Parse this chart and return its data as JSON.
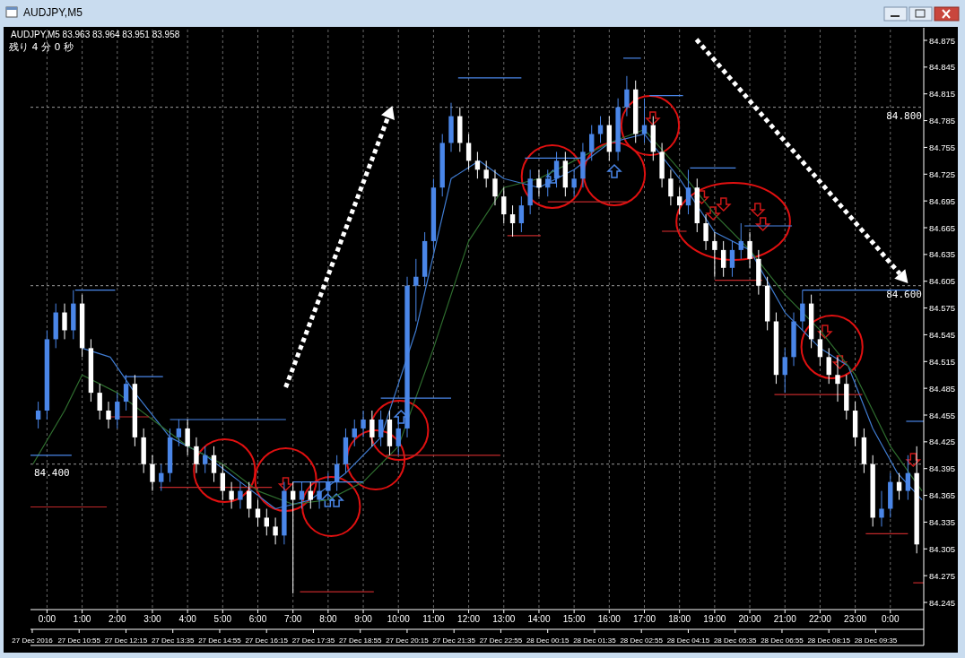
{
  "chart_data": {
    "type": "candlestick",
    "title": "AUDJPY,M5",
    "subtitle": "AUDJPY,M5  83.963 83.964 83.951 83.958",
    "annotations": [
      "残り 4 分 0 秒"
    ],
    "x": [
      -0.25,
      0,
      0.25,
      0.5,
      0.75,
      1,
      1.25,
      1.5,
      1.75,
      2,
      2.25,
      2.5,
      2.75,
      3,
      3.25,
      3.5,
      3.75,
      4,
      4.25,
      4.5,
      4.75,
      5,
      5.25,
      5.5,
      5.75,
      6,
      6.25,
      6.5,
      6.75,
      7,
      7.25,
      7.5,
      7.75,
      8,
      8.25,
      8.5,
      8.75,
      9,
      9.25,
      9.5,
      9.75,
      10,
      10.25,
      10.5,
      10.75,
      11,
      11.25,
      11.5,
      11.75,
      12,
      12.25,
      12.5,
      12.75,
      13,
      13.25,
      13.5,
      13.75,
      14,
      14.25,
      14.5,
      14.75,
      15,
      15.25,
      15.5,
      15.75,
      16,
      16.25,
      16.5,
      16.75,
      17,
      17.25,
      17.5,
      17.75,
      18,
      18.25,
      18.5,
      18.75,
      19,
      19.25,
      19.5,
      19.75,
      20,
      20.25,
      20.5,
      20.75,
      21,
      21.25,
      21.5,
      21.75,
      22,
      22.25,
      22.5,
      22.75,
      23,
      23.25,
      23.5,
      23.75,
      24,
      24.25,
      24.5,
      24.75
    ],
    "ohlc": [
      [
        84.45,
        84.47,
        84.44,
        84.46
      ],
      [
        84.46,
        84.55,
        84.45,
        84.54
      ],
      [
        84.54,
        84.58,
        84.53,
        84.57
      ],
      [
        84.57,
        84.58,
        84.54,
        84.55
      ],
      [
        84.55,
        84.595,
        84.54,
        84.58
      ],
      [
        84.58,
        84.59,
        84.52,
        84.53
      ],
      [
        84.53,
        84.54,
        84.47,
        84.48
      ],
      [
        84.48,
        84.49,
        84.45,
        84.46
      ],
      [
        84.46,
        84.47,
        84.44,
        84.45
      ],
      [
        84.45,
        84.48,
        84.44,
        84.47
      ],
      [
        84.47,
        84.5,
        84.46,
        84.49
      ],
      [
        84.49,
        84.5,
        84.42,
        84.43
      ],
      [
        84.43,
        84.44,
        84.39,
        84.4
      ],
      [
        84.4,
        84.41,
        84.37,
        84.38
      ],
      [
        84.38,
        84.4,
        84.37,
        84.39
      ],
      [
        84.39,
        84.44,
        84.38,
        84.43
      ],
      [
        84.43,
        84.45,
        84.42,
        84.44
      ],
      [
        84.44,
        84.45,
        84.41,
        84.42
      ],
      [
        84.42,
        84.43,
        84.39,
        84.4
      ],
      [
        84.4,
        84.42,
        84.39,
        84.41
      ],
      [
        84.41,
        84.42,
        84.38,
        84.39
      ],
      [
        84.39,
        84.4,
        84.36,
        84.37
      ],
      [
        84.37,
        84.38,
        84.35,
        84.36
      ],
      [
        84.36,
        84.38,
        84.35,
        84.37
      ],
      [
        84.37,
        84.38,
        84.34,
        84.35
      ],
      [
        84.35,
        84.36,
        84.33,
        84.34
      ],
      [
        84.34,
        84.35,
        84.32,
        84.33
      ],
      [
        84.33,
        84.34,
        84.31,
        84.32
      ],
      [
        84.32,
        84.38,
        84.31,
        84.37
      ],
      [
        84.37,
        84.38,
        84.255,
        84.36
      ],
      [
        84.36,
        84.38,
        84.35,
        84.37
      ],
      [
        84.37,
        84.38,
        84.35,
        84.36
      ],
      [
        84.36,
        84.38,
        84.35,
        84.37
      ],
      [
        84.37,
        84.39,
        84.36,
        84.38
      ],
      [
        84.38,
        84.41,
        84.37,
        84.4
      ],
      [
        84.4,
        84.44,
        84.39,
        84.43
      ],
      [
        84.43,
        84.45,
        84.42,
        84.44
      ],
      [
        84.44,
        84.46,
        84.43,
        84.45
      ],
      [
        84.45,
        84.46,
        84.42,
        84.43
      ],
      [
        84.43,
        84.46,
        84.42,
        84.45
      ],
      [
        84.45,
        84.46,
        84.41,
        84.42
      ],
      [
        84.42,
        84.45,
        84.41,
        84.44
      ],
      [
        84.44,
        84.61,
        84.43,
        84.6
      ],
      [
        84.6,
        84.63,
        84.56,
        84.61
      ],
      [
        84.61,
        84.66,
        84.6,
        84.65
      ],
      [
        84.65,
        84.72,
        84.64,
        84.71
      ],
      [
        84.71,
        84.77,
        84.7,
        84.76
      ],
      [
        84.76,
        84.805,
        84.75,
        84.79
      ],
      [
        84.79,
        84.8,
        84.75,
        84.76
      ],
      [
        84.76,
        84.77,
        84.73,
        84.74
      ],
      [
        84.74,
        84.75,
        84.72,
        84.73
      ],
      [
        84.73,
        84.74,
        84.71,
        84.72
      ],
      [
        84.72,
        84.73,
        84.69,
        84.7
      ],
      [
        84.7,
        84.71,
        84.67,
        84.68
      ],
      [
        84.68,
        84.69,
        84.655,
        84.67
      ],
      [
        84.67,
        84.7,
        84.66,
        84.69
      ],
      [
        84.69,
        84.73,
        84.68,
        84.72
      ],
      [
        84.72,
        84.73,
        84.7,
        84.71
      ],
      [
        84.71,
        84.73,
        84.7,
        84.72
      ],
      [
        84.72,
        84.75,
        84.71,
        84.74
      ],
      [
        84.74,
        84.75,
        84.7,
        84.71
      ],
      [
        84.71,
        84.73,
        84.7,
        84.72
      ],
      [
        84.72,
        84.76,
        84.71,
        84.75
      ],
      [
        84.75,
        84.78,
        84.74,
        84.77
      ],
      [
        84.77,
        84.79,
        84.76,
        84.78
      ],
      [
        84.78,
        84.79,
        84.74,
        84.75
      ],
      [
        84.75,
        84.81,
        84.74,
        84.8
      ],
      [
        84.8,
        84.835,
        84.79,
        84.82
      ],
      [
        84.82,
        84.83,
        84.76,
        84.77
      ],
      [
        84.77,
        84.81,
        84.76,
        84.78
      ],
      [
        84.78,
        84.79,
        84.74,
        84.75
      ],
      [
        84.75,
        84.76,
        84.71,
        84.72
      ],
      [
        84.72,
        84.73,
        84.69,
        84.7
      ],
      [
        84.7,
        84.71,
        84.68,
        84.69
      ],
      [
        84.69,
        84.73,
        84.68,
        84.71
      ],
      [
        84.71,
        84.72,
        84.66,
        84.67
      ],
      [
        84.67,
        84.68,
        84.64,
        84.65
      ],
      [
        84.65,
        84.66,
        84.61,
        84.64
      ],
      [
        84.64,
        84.65,
        84.61,
        84.62
      ],
      [
        84.62,
        84.65,
        84.61,
        84.64
      ],
      [
        84.64,
        84.67,
        84.63,
        84.65
      ],
      [
        84.65,
        84.66,
        84.62,
        84.63
      ],
      [
        84.63,
        84.64,
        84.59,
        84.6
      ],
      [
        84.6,
        84.61,
        84.55,
        84.56
      ],
      [
        84.56,
        84.57,
        84.49,
        84.5
      ],
      [
        84.5,
        84.53,
        84.48,
        84.52
      ],
      [
        84.52,
        84.57,
        84.51,
        84.56
      ],
      [
        84.56,
        84.595,
        84.55,
        84.58
      ],
      [
        84.58,
        84.59,
        84.53,
        84.54
      ],
      [
        84.54,
        84.55,
        84.51,
        84.52
      ],
      [
        84.52,
        84.53,
        84.49,
        84.5
      ],
      [
        84.5,
        84.52,
        84.47,
        84.49
      ],
      [
        84.49,
        84.5,
        84.45,
        84.46
      ],
      [
        84.46,
        84.47,
        84.42,
        84.43
      ],
      [
        84.43,
        84.44,
        84.39,
        84.4
      ],
      [
        84.4,
        84.41,
        84.33,
        84.34
      ],
      [
        84.34,
        84.37,
        84.33,
        84.35
      ],
      [
        84.35,
        84.39,
        84.34,
        84.38
      ],
      [
        84.38,
        84.39,
        84.36,
        84.37
      ],
      [
        84.37,
        84.41,
        84.36,
        84.39
      ],
      [
        84.39,
        84.42,
        84.3,
        84.31
      ]
    ],
    "colors": [
      "#4a86e8",
      "#4a86e8",
      "#4a86e8",
      "#ffffff",
      "#4a86e8",
      "#ffffff",
      "#ffffff",
      "#ffffff",
      "#ffffff",
      "#4a86e8",
      "#4a86e8",
      "#ffffff",
      "#ffffff",
      "#ffffff",
      "#4a86e8",
      "#4a86e8",
      "#4a86e8",
      "#ffffff",
      "#ffffff",
      "#4a86e8",
      "#ffffff",
      "#ffffff",
      "#ffffff",
      "#4a86e8",
      "#ffffff",
      "#ffffff",
      "#ffffff",
      "#ffffff",
      "#4a86e8",
      "#ffffff",
      "#4a86e8",
      "#ffffff",
      "#4a86e8",
      "#4a86e8",
      "#4a86e8",
      "#4a86e8",
      "#4a86e8",
      "#4a86e8",
      "#ffffff",
      "#4a86e8",
      "#ffffff",
      "#4a86e8",
      "#4a86e8",
      "#4a86e8",
      "#4a86e8",
      "#4a86e8",
      "#4a86e8",
      "#4a86e8",
      "#ffffff",
      "#ffffff",
      "#ffffff",
      "#ffffff",
      "#ffffff",
      "#ffffff",
      "#ffffff",
      "#4a86e8",
      "#4a86e8",
      "#ffffff",
      "#4a86e8",
      "#4a86e8",
      "#ffffff",
      "#4a86e8",
      "#4a86e8",
      "#4a86e8",
      "#4a86e8",
      "#ffffff",
      "#4a86e8",
      "#4a86e8",
      "#ffffff",
      "#4a86e8",
      "#ffffff",
      "#ffffff",
      "#ffffff",
      "#ffffff",
      "#4a86e8",
      "#ffffff",
      "#ffffff",
      "#ffffff",
      "#ffffff",
      "#4a86e8",
      "#4a86e8",
      "#ffffff",
      "#ffffff",
      "#ffffff",
      "#ffffff",
      "#4a86e8",
      "#4a86e8",
      "#4a86e8",
      "#ffffff",
      "#ffffff",
      "#ffffff",
      "#ffffff",
      "#ffffff",
      "#ffffff",
      "#ffffff",
      "#ffffff",
      "#4a86e8",
      "#4a86e8",
      "#ffffff",
      "#4a86e8",
      "#ffffff"
    ],
    "series": [
      {
        "type": "line",
        "color": "#3f7bd0",
        "x": [
          1,
          1.8,
          2.5,
          3.5,
          4.5,
          5.5,
          6.5,
          7.5,
          8.5,
          9.5,
          10.5,
          11.5,
          12.3,
          13,
          14,
          15,
          16,
          17,
          18,
          19,
          20,
          21,
          22,
          22.8,
          23.5,
          24.2,
          24.9
        ],
        "values": [
          84.53,
          84.52,
          84.48,
          84.43,
          84.41,
          84.38,
          84.35,
          84.36,
          84.39,
          84.43,
          84.55,
          84.72,
          84.74,
          84.72,
          84.71,
          84.73,
          84.76,
          84.77,
          84.72,
          84.66,
          84.64,
          84.57,
          84.53,
          84.51,
          84.44,
          84.39,
          84.36
        ]
      },
      {
        "type": "line",
        "color": "#2f6e2f",
        "x": [
          -0.4,
          0.5,
          1,
          2,
          3,
          4,
          5,
          6,
          7,
          8,
          9,
          10,
          11,
          12,
          13,
          14,
          15,
          16,
          17,
          18,
          19,
          20,
          21,
          22,
          23,
          24,
          24.9
        ],
        "values": [
          84.4,
          84.46,
          84.5,
          84.48,
          84.45,
          84.42,
          84.4,
          84.37,
          84.355,
          84.36,
          84.38,
          84.42,
          84.53,
          84.65,
          84.71,
          84.72,
          84.74,
          84.76,
          84.775,
          84.73,
          84.68,
          84.64,
          84.59,
          84.55,
          84.5,
          84.42,
          84.37
        ]
      },
      {
        "type": "line",
        "color": "#4a86e8",
        "x": [
          0.8,
          1.94
        ],
        "values": [
          84.595,
          84.595
        ]
      },
      {
        "type": "line",
        "color": "#4a86e8",
        "x": [
          -0.47,
          0.7
        ],
        "values": [
          84.41,
          84.41
        ]
      },
      {
        "type": "line",
        "color": "#c0282a",
        "x": [
          -0.47,
          1.7
        ],
        "values": [
          84.352,
          84.352
        ]
      },
      {
        "type": "line",
        "color": "#4a86e8",
        "x": [
          2.2,
          3.3
        ],
        "values": [
          84.498,
          84.498
        ]
      },
      {
        "type": "line",
        "color": "#c0282a",
        "x": [
          1.8,
          2.9
        ],
        "values": [
          84.453,
          84.453
        ]
      },
      {
        "type": "line",
        "color": "#4a86e8",
        "x": [
          3.5,
          6.8
        ],
        "values": [
          84.45,
          84.45
        ]
      },
      {
        "type": "line",
        "color": "#c0282a",
        "x": [
          3.2,
          6.4
        ],
        "values": [
          84.374,
          84.374
        ]
      },
      {
        "type": "line",
        "color": "#4a86e8",
        "x": [
          7,
          9
        ],
        "values": [
          84.38,
          84.38
        ]
      },
      {
        "type": "line",
        "color": "#c0282a",
        "x": [
          7.2,
          9.3
        ],
        "values": [
          84.257,
          84.257
        ]
      },
      {
        "type": "line",
        "color": "#4a86e8",
        "x": [
          9.5,
          11.5
        ],
        "values": [
          84.474,
          84.474
        ]
      },
      {
        "type": "line",
        "color": "#c0282a",
        "x": [
          9.65,
          12.9
        ],
        "values": [
          84.41,
          84.41
        ]
      },
      {
        "type": "line",
        "color": "#4a86e8",
        "x": [
          11.7,
          13.5
        ],
        "values": [
          84.833,
          84.833
        ]
      },
      {
        "type": "line",
        "color": "#c0282a",
        "x": [
          13.1,
          14.05
        ],
        "values": [
          84.656,
          84.656
        ]
      },
      {
        "type": "line",
        "color": "#4a86e8",
        "x": [
          13.6,
          15.25
        ],
        "values": [
          84.743,
          84.743
        ]
      },
      {
        "type": "line",
        "color": "#c0282a",
        "x": [
          14.25,
          16.5
        ],
        "values": [
          84.694,
          84.694
        ]
      },
      {
        "type": "line",
        "color": "#4a86e8",
        "x": [
          16.4,
          16.9
        ],
        "values": [
          84.855,
          84.855
        ]
      },
      {
        "type": "line",
        "color": "#4a86e8",
        "x": [
          17.15,
          18.1
        ],
        "values": [
          84.813,
          84.813
        ]
      },
      {
        "type": "line",
        "color": "#4a86e8",
        "x": [
          18.3,
          19.6
        ],
        "values": [
          84.732,
          84.732
        ]
      },
      {
        "type": "line",
        "color": "#c0282a",
        "x": [
          17.5,
          18.2
        ],
        "values": [
          84.661,
          84.661
        ]
      },
      {
        "type": "line",
        "color": "#c0282a",
        "x": [
          19,
          20.35
        ],
        "values": [
          84.606,
          84.606
        ]
      },
      {
        "type": "line",
        "color": "#4a86e8",
        "x": [
          19.85,
          21.2
        ],
        "values": [
          84.667,
          84.667
        ]
      },
      {
        "type": "line",
        "color": "#4a86e8",
        "x": [
          21.5,
          24.8
        ],
        "values": [
          84.595,
          84.595
        ]
      },
      {
        "type": "line",
        "color": "#c0282a",
        "x": [
          20.7,
          23.2
        ],
        "values": [
          84.478,
          84.478
        ]
      },
      {
        "type": "line",
        "color": "#c0282a",
        "x": [
          23.3,
          24.5
        ],
        "values": [
          84.322,
          84.322
        ]
      },
      {
        "type": "line",
        "color": "#4a86e8",
        "x": [
          24.45,
          24.95
        ],
        "values": [
          84.448,
          84.448
        ]
      },
      {
        "type": "line",
        "color": "#c0282a",
        "x": [
          24.65,
          24.95
        ],
        "values": [
          84.267,
          84.267
        ]
      }
    ],
    "xlim": [
      -0.47,
      24.95
    ],
    "xticks": [
      {
        "value": 0,
        "label": "0:00"
      },
      {
        "value": 1,
        "label": "1:00"
      },
      {
        "value": 2,
        "label": "2:00"
      },
      {
        "value": 3,
        "label": "3:00"
      },
      {
        "value": 4,
        "label": "4:00"
      },
      {
        "value": 5,
        "label": "5:00"
      },
      {
        "value": 6,
        "label": "6:00"
      },
      {
        "value": 7,
        "label": "7:00"
      },
      {
        "value": 8,
        "label": "8:00"
      },
      {
        "value": 9,
        "label": "9:00"
      },
      {
        "value": 10,
        "label": "10:00"
      },
      {
        "value": 11,
        "label": "11:00"
      },
      {
        "value": 12,
        "label": "12:00"
      },
      {
        "value": 13,
        "label": "13:00"
      },
      {
        "value": 14,
        "label": "14:00"
      },
      {
        "value": 15,
        "label": "15:00"
      },
      {
        "value": 16,
        "label": "16:00"
      },
      {
        "value": 17,
        "label": "17:00"
      },
      {
        "value": 18,
        "label": "18:00"
      },
      {
        "value": 19,
        "label": "19:00"
      },
      {
        "value": 20,
        "label": "20:00"
      },
      {
        "value": 21,
        "label": "21:00"
      },
      {
        "value": 22,
        "label": "22:00"
      },
      {
        "value": 23,
        "label": "23:00"
      },
      {
        "value": 24,
        "label": "0:00"
      }
    ],
    "x2lim": [
      "2016-12-27T09:32",
      "2016-12-28T10:57"
    ],
    "x2ticks": [
      {
        "value": "2016-12-27T09:35",
        "label": "27 Dec 2016"
      },
      {
        "value": "2016-12-27T10:55",
        "label": "27 Dec 10:55"
      },
      {
        "value": "2016-12-27T12:15",
        "label": "27 Dec 12:15"
      },
      {
        "value": "2016-12-27T13:35",
        "label": "27 Dec 13:35"
      },
      {
        "value": "2016-12-27T14:55",
        "label": "27 Dec 14:55"
      },
      {
        "value": "2016-12-27T16:15",
        "label": "27 Dec 16:15"
      },
      {
        "value": "2016-12-27T17:35",
        "label": "27 Dec 17:35"
      },
      {
        "value": "2016-12-27T18:55",
        "label": "27 Dec 18:55"
      },
      {
        "value": "2016-12-27T20:15",
        "label": "27 Dec 20:15"
      },
      {
        "value": "2016-12-27T21:35",
        "label": "27 Dec 21:35"
      },
      {
        "value": "2016-12-27T22:55",
        "label": "27 Dec 22:55"
      },
      {
        "value": "2016-12-28T00:15",
        "label": "28 Dec 00:15"
      },
      {
        "value": "2016-12-28T01:35",
        "label": "28 Dec 01:35"
      },
      {
        "value": "2016-12-28T02:55",
        "label": "28 Dec 02:55"
      },
      {
        "value": "2016-12-28T04:15",
        "label": "28 Dec 04:15"
      },
      {
        "value": "2016-12-28T05:35",
        "label": "28 Dec 05:35"
      },
      {
        "value": "2016-12-28T06:55",
        "label": "28 Dec 06:55"
      },
      {
        "value": "2016-12-28T08:15",
        "label": "28 Dec 08:15"
      },
      {
        "value": "2016-12-28T09:35",
        "label": "28 Dec 09:35"
      }
    ],
    "ylim": [
      84.245,
      84.875
    ],
    "yticks": [
      84.245,
      84.275,
      84.305,
      84.335,
      84.365,
      84.395,
      84.425,
      84.455,
      84.485,
      84.515,
      84.545,
      84.575,
      84.605,
      84.635,
      84.665,
      84.695,
      84.725,
      84.755,
      84.785,
      84.815,
      84.845,
      84.875
    ],
    "grid": "x",
    "ref_lines": [
      {
        "axis": "y",
        "value": 84.8,
        "label": "84.800",
        "color": "#9a9a9a",
        "line_style": "dashed"
      },
      {
        "axis": "y",
        "value": 84.6,
        "label": "84.600",
        "color": "#9a9a9a",
        "line_style": "dashed"
      },
      {
        "axis": "y",
        "value": 84.4,
        "label": "84.400",
        "color": "#9a9a9a",
        "line_style": "dashed"
      }
    ]
  }
}
